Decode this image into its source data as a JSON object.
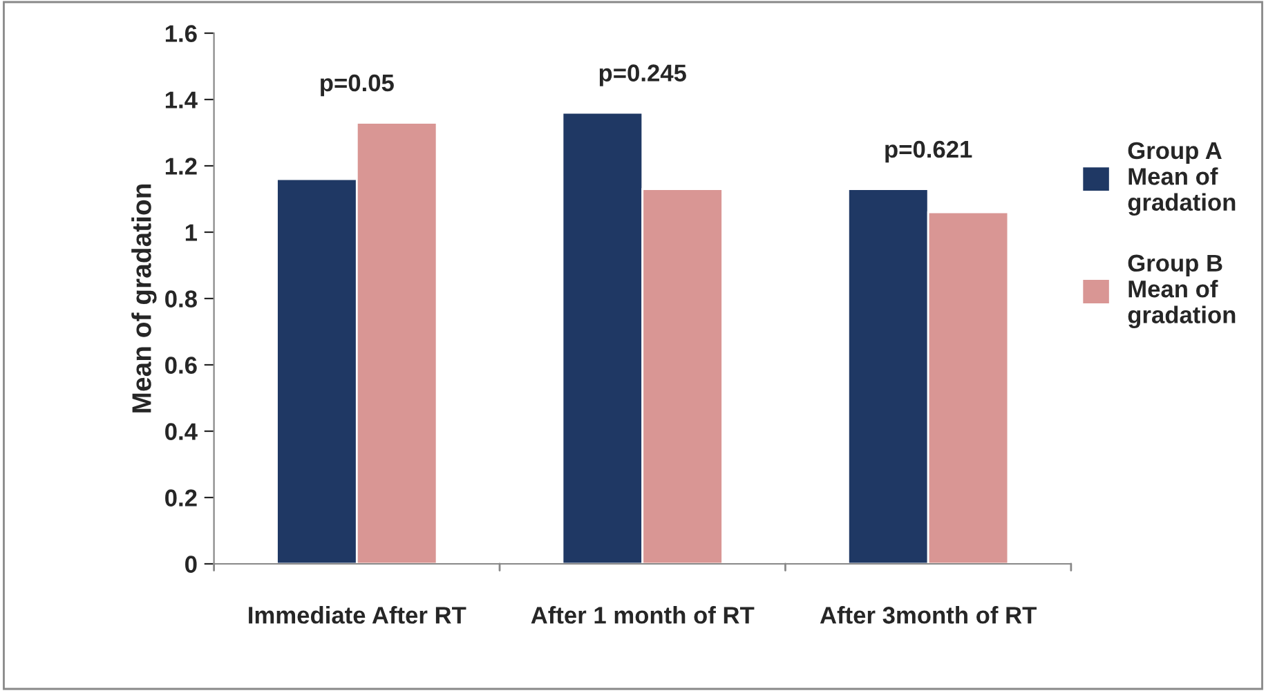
{
  "chart_data": {
    "type": "bar",
    "ylabel": "Mean of gradation",
    "categories": [
      "Immediate After RT",
      "After 1 month of RT",
      "After 3month of RT"
    ],
    "series": [
      {
        "name": "Group A Mean of gradation",
        "color": "#1f3864",
        "values": [
          1.16,
          1.36,
          1.13
        ]
      },
      {
        "name": "Group B Mean of gradation",
        "color": "#d99694",
        "values": [
          1.33,
          1.13,
          1.06
        ]
      }
    ],
    "ylim": [
      0,
      1.6
    ],
    "yticks": [
      0,
      0.2,
      0.4,
      0.6,
      0.8,
      1,
      1.2,
      1.4,
      1.6
    ],
    "annotations": [
      "p=0.05",
      "p=0.245",
      "p=0.621"
    ],
    "grid": false,
    "legend": "right"
  }
}
